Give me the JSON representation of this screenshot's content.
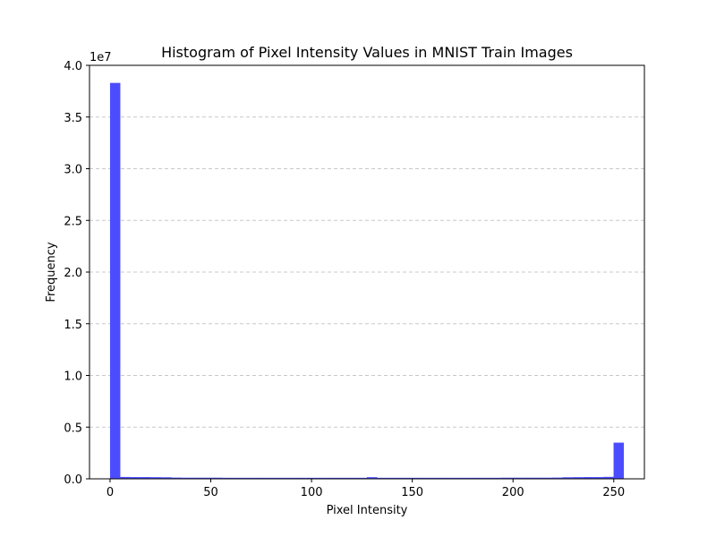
{
  "chart_data": {
    "type": "bar",
    "title": "Histogram of Pixel Intensity Values in MNIST Train Images",
    "xlabel": "Pixel Intensity",
    "ylabel": "Frequency",
    "y_offset_label": "1e7",
    "bin_edges_range": [
      0,
      255
    ],
    "bin_count": 50,
    "xlim": [
      -10.2,
      265.2
    ],
    "ylim": [
      0,
      40000000
    ],
    "x_ticks": [
      0,
      50,
      100,
      150,
      200,
      250
    ],
    "x_tick_labels": [
      "0",
      "50",
      "100",
      "150",
      "200",
      "250"
    ],
    "y_ticks": [
      0,
      5000000,
      10000000,
      15000000,
      20000000,
      25000000,
      30000000,
      35000000,
      40000000
    ],
    "y_tick_labels": [
      "0.0",
      "0.5",
      "1.0",
      "1.5",
      "2.0",
      "2.5",
      "3.0",
      "3.5",
      "4.0"
    ],
    "values": [
      38300000,
      180000,
      170000,
      170000,
      160000,
      150000,
      120000,
      110000,
      110000,
      110000,
      110000,
      100000,
      100000,
      100000,
      100000,
      100000,
      100000,
      100000,
      100000,
      100000,
      100000,
      100000,
      100000,
      100000,
      100000,
      160000,
      100000,
      100000,
      100000,
      100000,
      100000,
      100000,
      100000,
      100000,
      100000,
      100000,
      100000,
      100000,
      110000,
      110000,
      110000,
      110000,
      110000,
      120000,
      150000,
      160000,
      170000,
      170000,
      190000,
      3500000
    ],
    "grid": "y-dashed",
    "bar_color": "#4c4cff",
    "grid_color": "#c8c8c8"
  }
}
